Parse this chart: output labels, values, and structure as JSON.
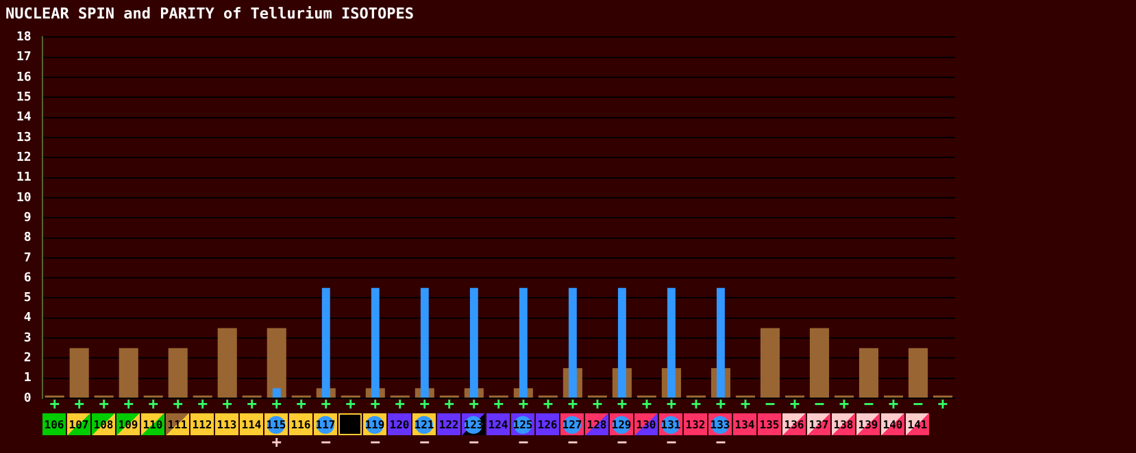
{
  "chart_data": {
    "type": "bar",
    "title": "NUCLEAR SPIN and PARITY of Tellurium ISOTOPES",
    "categories": [
      "106",
      "107",
      "108",
      "109",
      "110",
      "111",
      "112",
      "113",
      "114",
      "115",
      "116",
      "117",
      null,
      "119",
      "120",
      "121",
      "122",
      "123",
      "124",
      "125",
      "126",
      "127",
      "128",
      "129",
      "130",
      "131",
      "132",
      "133",
      "134",
      "135",
      "136",
      "137",
      "138",
      "139",
      "140",
      "141",
      null
    ],
    "series": [
      {
        "color": "#996633",
        "values": [
          0,
          2.5,
          0,
          2.5,
          0,
          2.5,
          0,
          3.5,
          0,
          3.5,
          0,
          0.5,
          0,
          0.5,
          0,
          0.5,
          0,
          0.5,
          0,
          0.5,
          0,
          1.5,
          0,
          1.5,
          0,
          1.5,
          0,
          1.5,
          0,
          3.5,
          0,
          3.5,
          0,
          2.5,
          0,
          2.5,
          0
        ],
        "value_labels": [
          "+",
          "+",
          "+",
          "+",
          "+",
          "+",
          "+",
          "+",
          "+",
          "+",
          "+",
          "+",
          "+",
          "+",
          "+",
          "+",
          "+",
          "+",
          "+",
          "+",
          "+",
          "+",
          "+",
          "+",
          "+",
          "+",
          "+",
          "+",
          "+",
          "−",
          "+",
          "−",
          "+",
          "−",
          "+",
          "−",
          "+"
        ]
      },
      {
        "color": "#3399ff",
        "values": [
          null,
          null,
          null,
          null,
          null,
          null,
          null,
          null,
          null,
          0.5,
          null,
          5.5,
          null,
          5.5,
          null,
          5.5,
          null,
          5.5,
          null,
          5.5,
          null,
          5.5,
          null,
          5.5,
          null,
          5.5,
          null,
          5.5,
          null,
          null,
          null,
          null,
          null,
          null,
          null,
          null,
          null
        ],
        "value_labels": [
          null,
          null,
          null,
          null,
          null,
          null,
          null,
          null,
          null,
          "+",
          null,
          "−",
          null,
          "−",
          null,
          "−",
          null,
          "−",
          null,
          "−",
          null,
          "−",
          null,
          "−",
          null,
          "−",
          null,
          "−",
          null,
          null,
          null,
          null,
          null,
          null,
          null,
          null,
          null
        ]
      }
    ],
    "ylim": [
      0,
      18
    ],
    "yticks": [
      0,
      1,
      2,
      3,
      4,
      5,
      6,
      7,
      8,
      9,
      10,
      11,
      12,
      13,
      14,
      15,
      16,
      17,
      18
    ],
    "grid": "y",
    "legend": false
  }
}
